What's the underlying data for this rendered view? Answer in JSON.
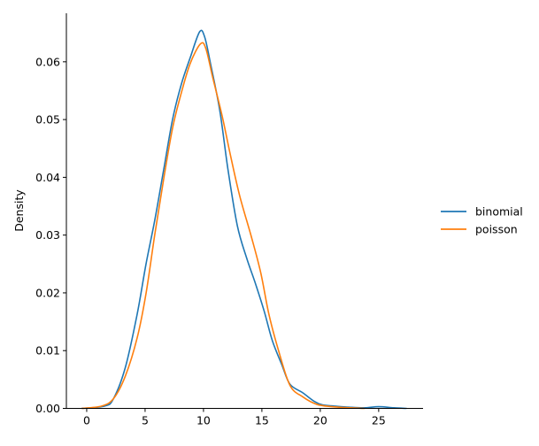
{
  "chart_data": {
    "type": "line",
    "title": "",
    "xlabel": "",
    "ylabel": "Density",
    "xlim": [
      -1.74,
      28.8
    ],
    "ylim": [
      0,
      0.0684
    ],
    "xticks": [
      0,
      5,
      10,
      15,
      20,
      25
    ],
    "yticks": [
      0.0,
      0.01,
      0.02,
      0.03,
      0.04,
      0.05,
      0.06
    ],
    "ytick_labels": [
      "0.00",
      "0.01",
      "0.02",
      "0.03",
      "0.04",
      "0.05",
      "0.06"
    ],
    "grid": false,
    "legend_placement": "right-outside",
    "series": [
      {
        "name": "binomial",
        "color": "#1f77b4",
        "x": [
          -0.43,
          1.54,
          2.3,
          3.31,
          4.32,
          5.08,
          5.83,
          6.59,
          7.35,
          8.1,
          8.86,
          9.67,
          10.1,
          10.6,
          11.4,
          12.1,
          12.9,
          13.7,
          14.4,
          15.2,
          15.9,
          16.7,
          17.4,
          18.5,
          19.5,
          20.2,
          21.2,
          22.5,
          23.8,
          25.0,
          26.3,
          27.4
        ],
        "y": [
          0,
          0.0004,
          0.0017,
          0.0071,
          0.0163,
          0.025,
          0.0326,
          0.0413,
          0.05,
          0.0561,
          0.0607,
          0.0652,
          0.0643,
          0.0597,
          0.0515,
          0.0413,
          0.0316,
          0.026,
          0.0219,
          0.0168,
          0.0117,
          0.0076,
          0.0042,
          0.0027,
          0.0012,
          0.0006,
          0.0004,
          0.0002,
          0.0001,
          0.0003,
          0.0001,
          0
        ]
      },
      {
        "name": "poisson",
        "color": "#ff7f0e",
        "x": [
          -0.43,
          1.28,
          2.3,
          3.31,
          4.32,
          5.08,
          5.83,
          6.59,
          7.35,
          8.1,
          8.86,
          9.74,
          10.2,
          10.8,
          11.6,
          12.3,
          13.1,
          14.1,
          14.9,
          15.6,
          16.4,
          17.4,
          18.5,
          19.7,
          21.0,
          22.5,
          23.8
        ],
        "y": [
          0,
          0.0004,
          0.0017,
          0.0056,
          0.0122,
          0.0199,
          0.0301,
          0.0397,
          0.0485,
          0.0546,
          0.0597,
          0.0631,
          0.0623,
          0.0572,
          0.0506,
          0.0439,
          0.0368,
          0.0297,
          0.0235,
          0.0163,
          0.0102,
          0.004,
          0.002,
          0.0007,
          0.0003,
          0.0001,
          0
        ]
      }
    ]
  }
}
